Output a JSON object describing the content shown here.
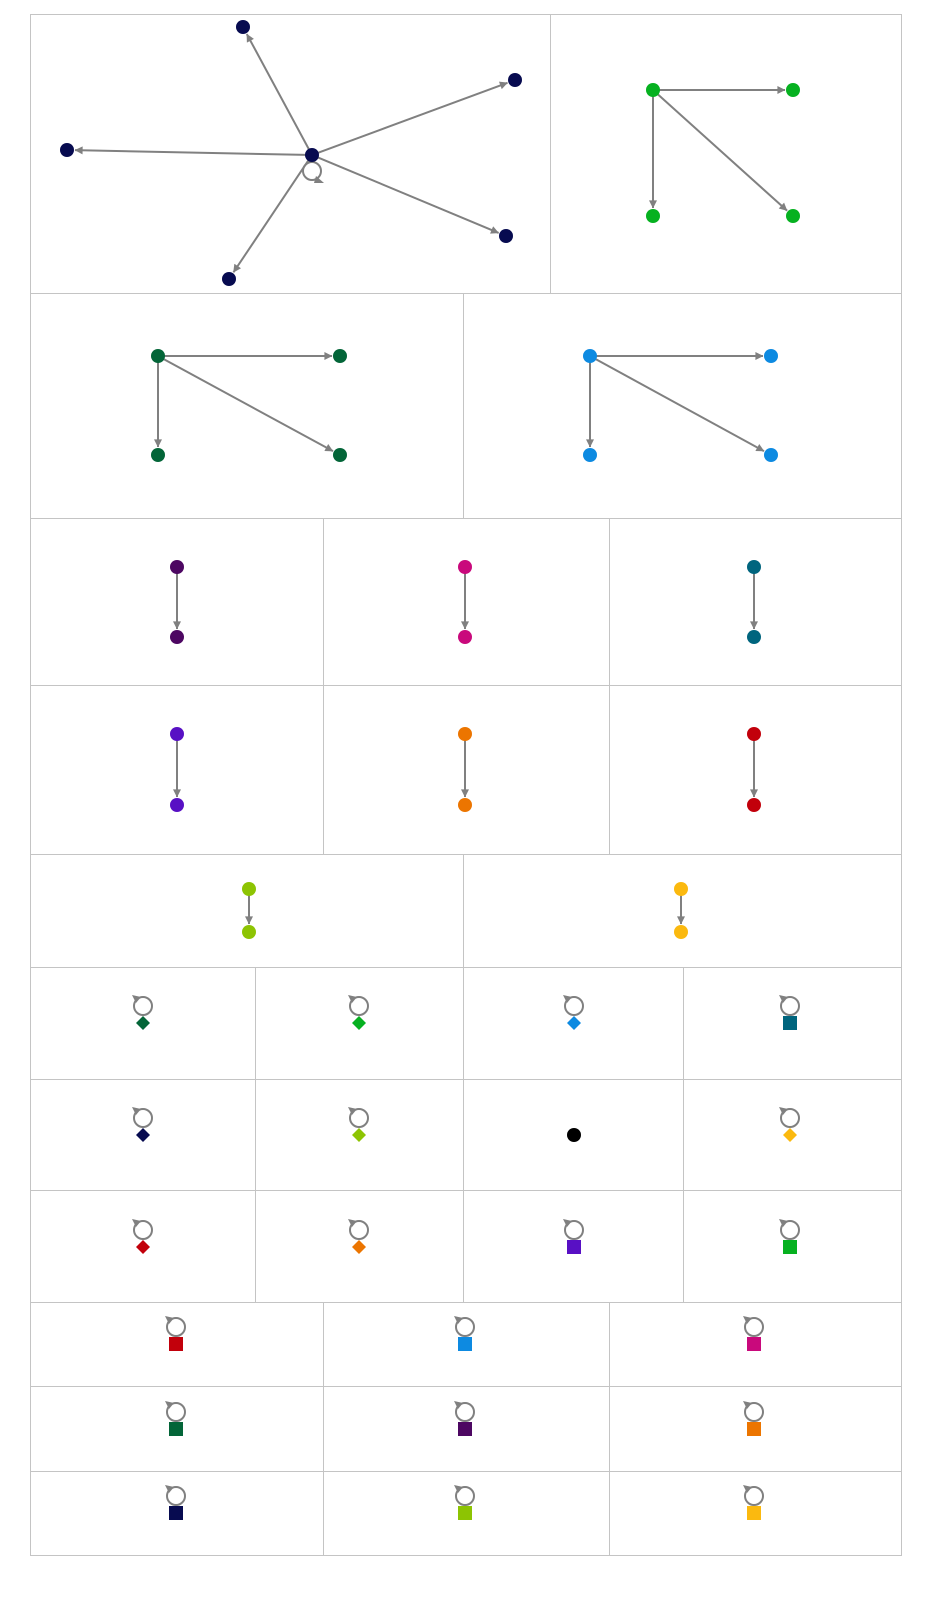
{
  "colors": {
    "edge": "#808080",
    "panel_border": "#c4c4c4",
    "navy": "#070b50",
    "green": "#06b120",
    "dark_green": "#036538",
    "blue": "#0d8ae1",
    "purple": "#4d0762",
    "magenta": "#c9097c",
    "teal": "#00657e",
    "violet": "#5810c4",
    "orange": "#ec7500",
    "red": "#c2000b",
    "lime": "#8dc403",
    "yellow": "#fbb90f",
    "black": "#000000"
  },
  "graphs": [
    {
      "kind": "star",
      "color": "navy",
      "self_loop": true
    },
    {
      "kind": "fan",
      "color": "green"
    },
    {
      "kind": "fan",
      "color": "dark_green"
    },
    {
      "kind": "fan",
      "color": "blue"
    },
    {
      "kind": "edge",
      "color": "purple"
    },
    {
      "kind": "edge",
      "color": "magenta"
    },
    {
      "kind": "edge",
      "color": "teal"
    },
    {
      "kind": "edge",
      "color": "violet"
    },
    {
      "kind": "edge",
      "color": "orange"
    },
    {
      "kind": "edge",
      "color": "red"
    },
    {
      "kind": "edge",
      "color": "lime"
    },
    {
      "kind": "edge",
      "color": "yellow"
    },
    {
      "kind": "loop",
      "shape": "diamond",
      "color": "dark_green"
    },
    {
      "kind": "loop",
      "shape": "diamond",
      "color": "green"
    },
    {
      "kind": "loop",
      "shape": "diamond",
      "color": "blue"
    },
    {
      "kind": "loop",
      "shape": "square",
      "color": "teal"
    },
    {
      "kind": "loop",
      "shape": "diamond",
      "color": "navy"
    },
    {
      "kind": "loop",
      "shape": "diamond",
      "color": "lime"
    },
    {
      "kind": "isolated",
      "shape": "circle",
      "color": "black"
    },
    {
      "kind": "loop",
      "shape": "diamond",
      "color": "yellow"
    },
    {
      "kind": "loop",
      "shape": "diamond",
      "color": "red"
    },
    {
      "kind": "loop",
      "shape": "diamond",
      "color": "orange"
    },
    {
      "kind": "loop",
      "shape": "square",
      "color": "violet"
    },
    {
      "kind": "loop",
      "shape": "square",
      "color": "green"
    },
    {
      "kind": "loop",
      "shape": "square",
      "color": "red"
    },
    {
      "kind": "loop",
      "shape": "square",
      "color": "blue"
    },
    {
      "kind": "loop",
      "shape": "square",
      "color": "magenta"
    },
    {
      "kind": "loop",
      "shape": "square",
      "color": "dark_green"
    },
    {
      "kind": "loop",
      "shape": "square",
      "color": "purple"
    },
    {
      "kind": "loop",
      "shape": "square",
      "color": "orange"
    },
    {
      "kind": "loop",
      "shape": "square",
      "color": "navy"
    },
    {
      "kind": "loop",
      "shape": "square",
      "color": "lime"
    },
    {
      "kind": "loop",
      "shape": "square",
      "color": "yellow"
    }
  ]
}
